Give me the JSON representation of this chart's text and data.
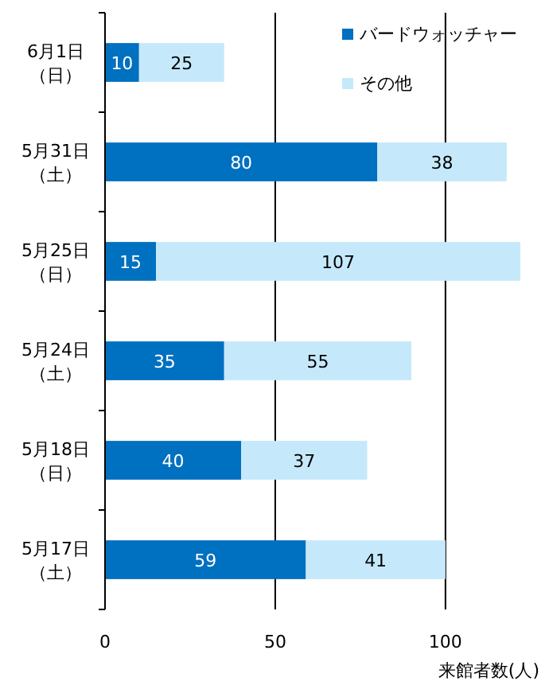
{
  "chart_data": {
    "type": "bar",
    "orientation": "horizontal",
    "stacked": true,
    "categories": [
      "6月1日（日）",
      "5月31日（土）",
      "5月25日（日）",
      "5月24日（土）",
      "5月18日（日）",
      "5月17日（土）"
    ],
    "series": [
      {
        "name": "バードウォッチャー",
        "color": "#0070c0",
        "values": [
          10,
          80,
          15,
          35,
          40,
          59
        ]
      },
      {
        "name": "その他",
        "color": "#c5e9fb",
        "values": [
          25,
          38,
          107,
          55,
          37,
          41
        ]
      }
    ],
    "xlim": [
      0,
      122
    ],
    "xticks": [
      0,
      50,
      100
    ],
    "xlabel": "来館者数(人)",
    "grid": "x",
    "legend": "top right",
    "data_labels": true
  }
}
